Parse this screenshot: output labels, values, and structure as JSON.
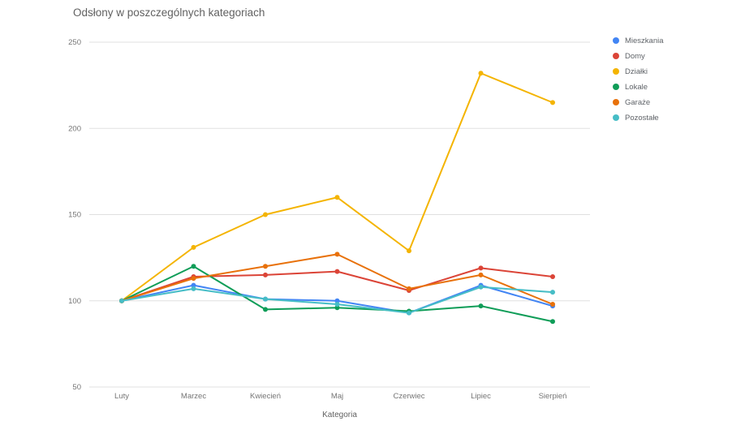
{
  "chart_data": {
    "type": "line",
    "title": "Odsłony w poszczególnych kategoriach",
    "xlabel": "Kategoria",
    "ylabel": "",
    "ylim": [
      50,
      250
    ],
    "yticks": [
      50,
      100,
      150,
      200,
      250
    ],
    "grid": true,
    "legend_position": "right",
    "categories": [
      "Luty",
      "Marzec",
      "Kwiecień",
      "Maj",
      "Czerwiec",
      "Lipiec",
      "Sierpień"
    ],
    "series": [
      {
        "name": "Mieszkania",
        "color": "#4285f4",
        "values": [
          100,
          109,
          101,
          100,
          93,
          109,
          97
        ]
      },
      {
        "name": "Domy",
        "color": "#db4437",
        "values": [
          100,
          114,
          115,
          117,
          106,
          119,
          114
        ]
      },
      {
        "name": "Działki",
        "color": "#f4b400",
        "values": [
          100,
          131,
          150,
          160,
          129,
          232,
          215
        ]
      },
      {
        "name": "Lokale",
        "color": "#0f9d58",
        "values": [
          100,
          120,
          95,
          96,
          94,
          97,
          88
        ]
      },
      {
        "name": "Garaże",
        "color": "#e8710a",
        "values": [
          100,
          113,
          120,
          127,
          107,
          115,
          98
        ]
      },
      {
        "name": "Pozostałe",
        "color": "#46bdc6",
        "values": [
          100,
          107,
          101,
          98,
          93,
          108,
          105
        ]
      }
    ]
  }
}
